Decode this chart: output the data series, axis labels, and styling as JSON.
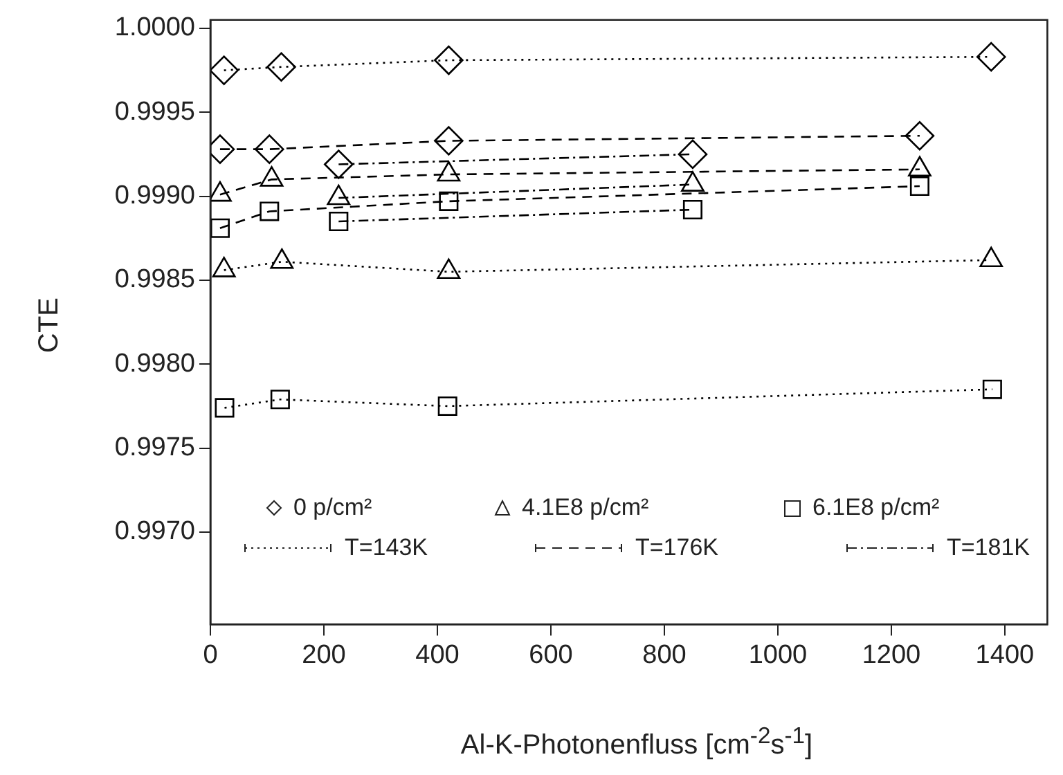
{
  "chart_data": {
    "type": "line",
    "xlabel": "Al-K-Photonenfluss [cm$^{-2}$s$^{-1}$]",
    "ylabel": "CTE",
    "xlim": [
      0,
      1475
    ],
    "xticks": [
      0,
      200,
      400,
      600,
      800,
      1000,
      1200,
      1400
    ],
    "ylim": [
      0.99645,
      1.00005
    ],
    "yticks": [
      {
        "value": 0.997,
        "label": "0.9970"
      },
      {
        "value": 0.9975,
        "label": "0.9975"
      },
      {
        "value": 0.998,
        "label": "0.9980"
      },
      {
        "value": 0.9985,
        "label": "0.9985"
      },
      {
        "value": 0.999,
        "label": "0.9990"
      },
      {
        "value": 0.9995,
        "label": "0.9995"
      },
      {
        "value": 1.0,
        "label": "1.0000"
      }
    ],
    "annotations": [
      "0 p/cm²",
      "4.1E8 p/cm²",
      "6.1E8 p/cm²",
      "T=143K",
      "T=176K",
      "T=181K"
    ],
    "series": [
      {
        "color": "#000000",
        "marker": "diamond",
        "line_style": "dotted",
        "x": [
          24,
          125,
          420,
          1376
        ],
        "values": [
          0.99975,
          0.99977,
          0.99981,
          0.99983
        ]
      },
      {
        "color": "#000000",
        "marker": "diamond",
        "line_style": "dashed",
        "x": [
          17,
          104,
          420,
          1250
        ],
        "values": [
          0.99928,
          0.99928,
          0.99933,
          0.99936
        ]
      },
      {
        "color": "#000000",
        "marker": "diamond",
        "line_style": "dashdot",
        "x": [
          226,
          850
        ],
        "values": [
          0.99919,
          0.99925
        ]
      },
      {
        "color": "#000000",
        "marker": "triangle",
        "line_style": "dotted",
        "x": [
          24,
          126,
          420,
          1376
        ],
        "values": [
          0.99856,
          0.99861,
          0.99855,
          0.99862
        ]
      },
      {
        "color": "#000000",
        "marker": "triangle",
        "line_style": "dashed",
        "x": [
          17,
          108,
          420,
          1250
        ],
        "values": [
          0.99901,
          0.9991,
          0.99913,
          0.99916
        ]
      },
      {
        "color": "#000000",
        "marker": "triangle",
        "line_style": "dashdot",
        "x": [
          226,
          850
        ],
        "values": [
          0.99899,
          0.99907
        ]
      },
      {
        "color": "#000000",
        "marker": "square",
        "line_style": "dotted",
        "x": [
          25,
          123,
          418,
          1378
        ],
        "values": [
          0.99774,
          0.99779,
          0.99775,
          0.99785
        ]
      },
      {
        "color": "#000000",
        "marker": "square",
        "line_style": "dashed",
        "x": [
          17,
          104,
          420,
          1250
        ],
        "values": [
          0.99881,
          0.99891,
          0.99897,
          0.99906
        ]
      },
      {
        "color": "#000000",
        "marker": "square",
        "line_style": "dashdot",
        "x": [
          226,
          850
        ],
        "values": [
          0.99885,
          0.99892
        ]
      }
    ]
  }
}
